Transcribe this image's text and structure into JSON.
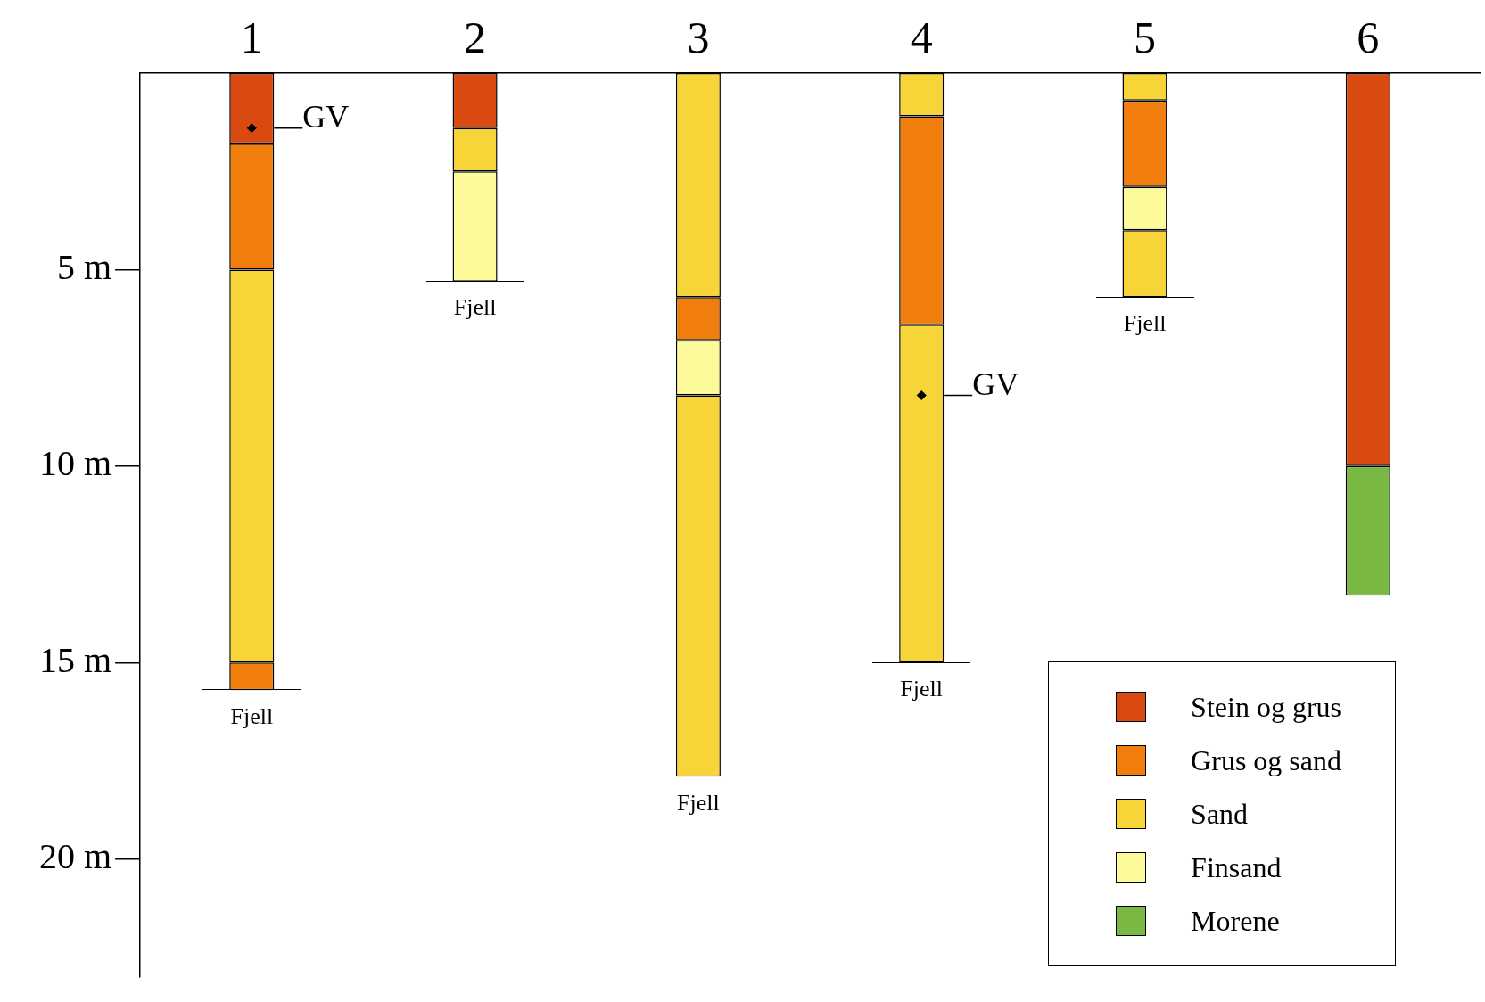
{
  "chart_data": {
    "type": "bar",
    "categories": [
      "1",
      "2",
      "3",
      "4",
      "5",
      "6"
    ],
    "series": [
      {
        "name": "Stein og grus",
        "color": "#d94a10",
        "values": [
          1.8,
          1.4,
          null,
          null,
          null,
          10.0
        ],
        "base": [
          0,
          0,
          null,
          null,
          null,
          0
        ]
      },
      {
        "name": "Grus og sand",
        "color": "#f07d0c",
        "values": [
          3.2,
          null,
          1.1,
          5.3,
          2.2,
          null
        ],
        "base": [
          1.8,
          null,
          5.7,
          1.1,
          0.7,
          null
        ]
      },
      {
        "name": "Sand",
        "color": "#f7d437",
        "values": [
          10.0,
          1.1,
          5.7,
          1.1,
          0.7,
          null
        ],
        "base": [
          5.0,
          1.4,
          0,
          0,
          0,
          null
        ]
      },
      {
        "name": "Finsand",
        "color": "#fdfa9c",
        "values": [
          null,
          2.8,
          1.4,
          null,
          1.1,
          null
        ],
        "base": [
          null,
          2.5,
          6.8,
          null,
          2.9,
          null
        ]
      },
      {
        "name": "Morene",
        "color": "#78b843",
        "values": [
          null,
          null,
          null,
          null,
          null,
          3.3
        ],
        "base": [
          null,
          null,
          null,
          null,
          null,
          10.0
        ]
      },
      {
        "color": "#f07d0c",
        "values": [
          0.7,
          null,
          null,
          null,
          null,
          null
        ],
        "base": [
          15.0,
          null,
          null,
          null,
          null,
          null
        ]
      },
      {
        "color": "#f7d437",
        "values": [
          null,
          null,
          9.7,
          8.6,
          1.7,
          null
        ],
        "base": [
          null,
          null,
          8.2,
          6.4,
          4.0,
          null
        ]
      },
      {
        "type": "scatter",
        "color": "#000000",
        "x": [
          "1",
          "4"
        ],
        "values": [
          1.4,
          8.2
        ],
        "marker": "diamond"
      }
    ],
    "ylim": [
      23,
      0
    ],
    "yticks": [
      {
        "value": 5,
        "label": "5 m"
      },
      {
        "value": 10,
        "label": "10 m"
      },
      {
        "value": 15,
        "label": "15 m"
      },
      {
        "value": 20,
        "label": "20 m"
      }
    ],
    "annotations": [
      {
        "text": "GV",
        "x": "1",
        "y": 1.4
      },
      {
        "text": "GV",
        "x": "4",
        "y": 8.2
      },
      {
        "text": "Fjell",
        "x": "1",
        "y": 15.7
      },
      {
        "text": "Fjell",
        "x": "2",
        "y": 5.3
      },
      {
        "text": "Fjell",
        "x": "3",
        "y": 17.9
      },
      {
        "text": "Fjell",
        "x": "4",
        "y": 15.0
      },
      {
        "text": "Fjell",
        "x": "5",
        "y": 5.7
      }
    ],
    "grid": false,
    "legend": "bottom right"
  }
}
